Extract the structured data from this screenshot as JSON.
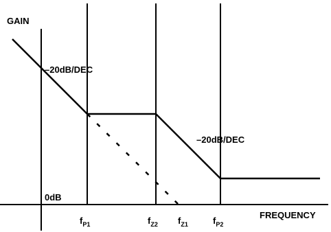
{
  "diagram": {
    "y_axis_label": "GAIN",
    "x_axis_label": "FREQUENCY",
    "zero_db_label": "0dB",
    "slope_label_1": "–20dB/DEC",
    "slope_label_2": "–20dB/DEC",
    "markers": [
      {
        "main": "f",
        "sub": "P1"
      },
      {
        "main": "f",
        "sub": "Z2"
      },
      {
        "main": "f",
        "sub": "Z1"
      },
      {
        "main": "f",
        "sub": "P2"
      }
    ],
    "colors": {
      "line": "#000000",
      "background": "#ffffff"
    }
  }
}
